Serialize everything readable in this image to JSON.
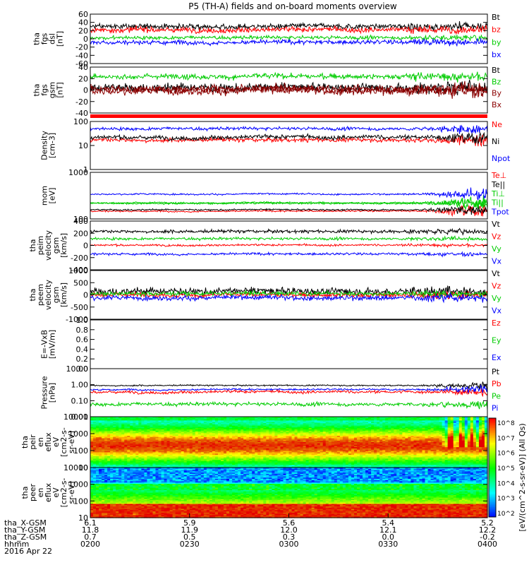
{
  "title": "P5 (TH-A) fields and on-board moments overview",
  "chart_data": [
    {
      "type": "line",
      "panel": "fgs_dsl",
      "ylabel": [
        "tha",
        "fgs",
        "dsl",
        "[nT]"
      ],
      "ylim": [
        -60,
        60
      ],
      "yticks": [
        "60",
        "40",
        "20",
        "0",
        "-20",
        "-40",
        "-60"
      ],
      "series": [
        {
          "name": "Bt",
          "color": "#000000",
          "base": 30,
          "noise": 6
        },
        {
          "name": "bz",
          "color": "#ff0000",
          "base": 22,
          "noise": 6
        },
        {
          "name": "by",
          "color": "#00cc00",
          "base": 3,
          "noise": 4
        },
        {
          "name": "bx",
          "color": "#0000ff",
          "base": -8,
          "noise": 5
        }
      ]
    },
    {
      "type": "line",
      "panel": "fgs_gsm",
      "ylabel": [
        "tha",
        "fgs",
        "gsm",
        "[nT]"
      ],
      "ylim": [
        -50,
        40
      ],
      "yticks": [
        "40",
        "20",
        "0",
        "-20",
        "-40"
      ],
      "series": [
        {
          "name": "Bt",
          "color": "#000000",
          "base": 0,
          "noise": 8
        },
        {
          "name": "Bz",
          "color": "#00cc00",
          "base": 22,
          "noise": 5
        },
        {
          "name": "By",
          "color": "#8b0000",
          "base": -2,
          "noise": 7
        },
        {
          "name": "Bx",
          "color": "#8b0000",
          "base": -6,
          "noise": 7
        }
      ]
    },
    {
      "type": "line",
      "panel": "density",
      "ylabel": [
        "Density",
        "[cm-3]"
      ],
      "scale": "log",
      "ylim": [
        1,
        100
      ],
      "yticks": [
        "100",
        "10",
        "1"
      ],
      "series": [
        {
          "name": "Ne",
          "color": "#ff0000",
          "base": 17,
          "noise": 0.08
        },
        {
          "name": "Ni",
          "color": "#000000",
          "base": 22,
          "noise": 0.08
        },
        {
          "name": "Npot",
          "color": "#0000ff",
          "base": 50,
          "noise": 0.06
        }
      ]
    },
    {
      "type": "line",
      "panel": "temperature",
      "ylabel": [
        "mom",
        "[eV]"
      ],
      "scale": "log",
      "ylim": [
        30,
        3000
      ],
      "yticks": [
        "1000",
        "100"
      ],
      "series": [
        {
          "name": "Te⊥",
          "color": "#ff0000",
          "base": 65,
          "noise": 0.03
        },
        {
          "name": "Te||",
          "color": "#000000",
          "base": 75,
          "noise": 0.03
        },
        {
          "name": "Ti⊥",
          "color": "#00cc00",
          "base": 150,
          "noise": 0.03
        },
        {
          "name": "Ti||",
          "color": "#00cc00",
          "base": 140,
          "noise": 0.03
        },
        {
          "name": "Tpot",
          "color": "#0000ff",
          "base": 350,
          "noise": 0.03
        }
      ]
    },
    {
      "type": "line",
      "panel": "peim_velocity",
      "ylabel": [
        "tha",
        "peim",
        "velocity",
        "gsm",
        "[km/s]"
      ],
      "ylim": [
        -400,
        400
      ],
      "yticks": [
        "400",
        "200",
        "0",
        "-200",
        "-400"
      ],
      "series": [
        {
          "name": "Vt",
          "color": "#000000",
          "base": 230,
          "noise": 25
        },
        {
          "name": "Vz",
          "color": "#ff0000",
          "base": 5,
          "noise": 15
        },
        {
          "name": "Vy",
          "color": "#00cc00",
          "base": 110,
          "noise": 20
        },
        {
          "name": "Vx",
          "color": "#0000ff",
          "base": -140,
          "noise": 18
        }
      ]
    },
    {
      "type": "line",
      "panel": "peem_velocity",
      "ylabel": [
        "tha",
        "peem",
        "velocity",
        "gsm",
        "[km/s]"
      ],
      "ylim": [
        -1000,
        1000
      ],
      "yticks": [
        "1000",
        "500",
        "0",
        "-500",
        "-1000"
      ],
      "series": [
        {
          "name": "Vt",
          "color": "#000000",
          "base": 150,
          "noise": 140
        },
        {
          "name": "Vz",
          "color": "#ff0000",
          "base": 0,
          "noise": 90
        },
        {
          "name": "Vy",
          "color": "#00cc00",
          "base": 60,
          "noise": 80
        },
        {
          "name": "Vx",
          "color": "#0000ff",
          "base": -120,
          "noise": 90
        }
      ]
    },
    {
      "type": "line",
      "panel": "efield",
      "ylabel": [
        "E=-VxB",
        "[mV/m]"
      ],
      "ylim": [
        0,
        1.0
      ],
      "yticks": [
        "1.0",
        "0.8",
        "0.6",
        "0.4",
        "0.2",
        "0.0"
      ],
      "series": [
        {
          "name": "Ez",
          "color": "#ff0000"
        },
        {
          "name": "Ey",
          "color": "#00cc00"
        },
        {
          "name": "Ex",
          "color": "#0000ff"
        }
      ]
    },
    {
      "type": "line",
      "panel": "pressure",
      "ylabel": [
        "Pressure",
        "[nPa]"
      ],
      "scale": "log",
      "ylim": [
        0.01,
        10
      ],
      "yticks": [
        "10.00",
        "1.00",
        "0.10",
        "0.01"
      ],
      "series": [
        {
          "name": "Pt",
          "color": "#000000",
          "base": 0.9,
          "noise": 0.04
        },
        {
          "name": "Pb",
          "color": "#ff0000",
          "base": 0.35,
          "noise": 0.08
        },
        {
          "name": "Pe",
          "color": "#00cc00",
          "base": 0.06,
          "noise": 0.1
        },
        {
          "name": "Pi",
          "color": "#0000ff",
          "base": 0.5,
          "noise": 0.05
        }
      ]
    },
    {
      "type": "heatmap",
      "panel": "peir_spectrogram",
      "ylabel": [
        "tha",
        "peir",
        "en",
        "eflux",
        "eV",
        "[cm2-s-",
        "sr-eV]"
      ],
      "scale": "log",
      "ylim": [
        7,
        25000
      ],
      "yticks": [
        "10000",
        "1000",
        "100",
        "10"
      ]
    },
    {
      "type": "heatmap",
      "panel": "peer_spectrogram",
      "ylabel": [
        "tha",
        "peer",
        "en",
        "eflux",
        "eV",
        "[cm2-s-",
        "sr-eV]"
      ],
      "scale": "log",
      "ylim": [
        7,
        25000
      ],
      "yticks": [
        "10000",
        "1000",
        "100",
        "10"
      ]
    }
  ],
  "colorbar": {
    "label": "[eV/(cm^2-s-sr-eV)] (All Qs)",
    "ticks": [
      "10^8",
      "10^7",
      "10^6",
      "10^5",
      "10^4",
      "10^3",
      "10^2"
    ]
  },
  "x_axis": {
    "rows": [
      {
        "label": "tha_X-GSM",
        "values": [
          "6.1",
          "5.9",
          "5.6",
          "5.4",
          "5.2"
        ]
      },
      {
        "label": "tha_Y-GSM",
        "values": [
          "11.8",
          "11.9",
          "12.0",
          "12.1",
          "12.2"
        ]
      },
      {
        "label": "tha_Z-GSM",
        "values": [
          "0.7",
          "0.5",
          "0.3",
          "0.0",
          "-0.2"
        ]
      },
      {
        "label": "hhmm",
        "values": [
          "0200",
          "0230",
          "0300",
          "0330",
          "0400"
        ]
      }
    ],
    "date": "2016 Apr 22"
  }
}
